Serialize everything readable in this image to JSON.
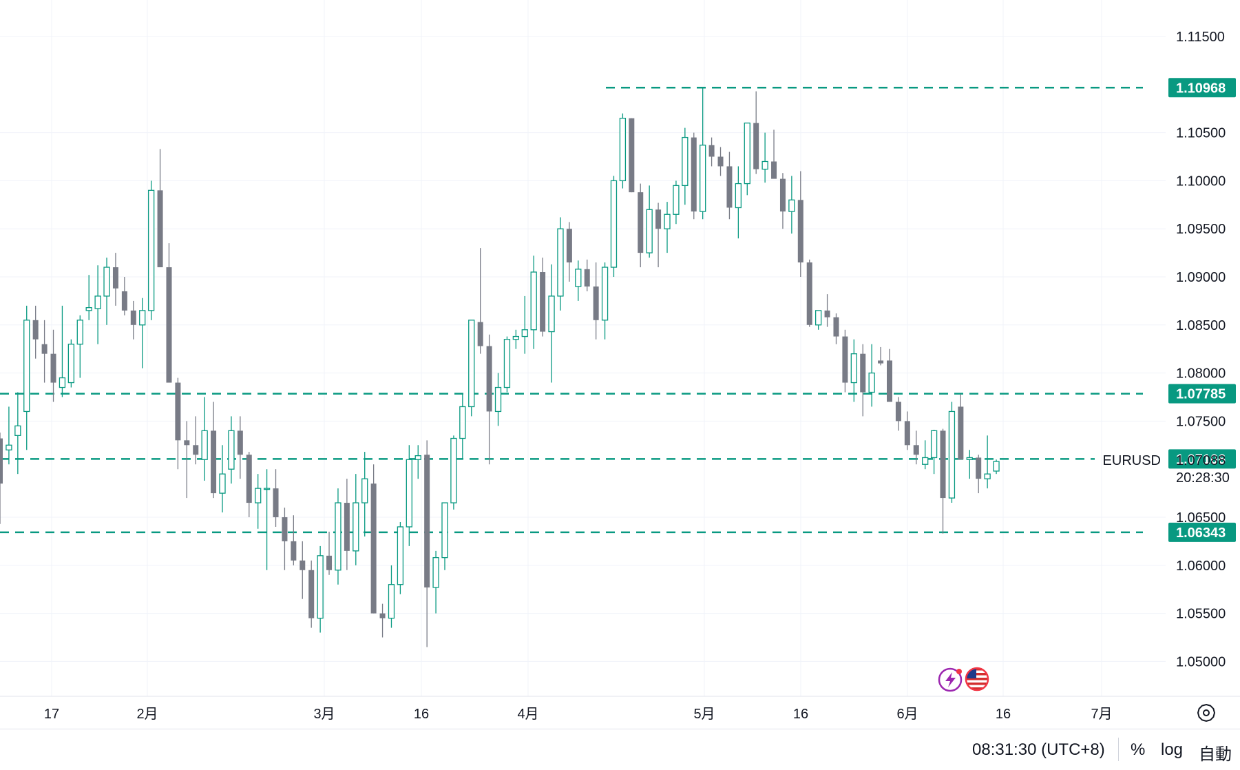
{
  "chart_data": {
    "type": "candlestick",
    "symbol": "EURUSD",
    "y_ticks": [
      "1.11500",
      "1.10500",
      "1.10000",
      "1.09500",
      "1.09000",
      "1.08500",
      "1.08000",
      "1.07500",
      "1.06500",
      "1.06000",
      "1.05500",
      "1.05000"
    ],
    "x_ticks": [
      "17",
      "2月",
      "3月",
      "16",
      "4月",
      "5月",
      "16",
      "6月",
      "16",
      "7月"
    ],
    "ylim": [
      1.0465,
      1.118
    ],
    "grid": true,
    "horizontal_lines": [
      {
        "price": 1.10968,
        "label": "1.10968",
        "color": "#089981"
      },
      {
        "price": 1.07785,
        "label": "1.07785",
        "color": "#089981"
      },
      {
        "price": 1.07106,
        "label": "1.07106",
        "color": "#089981"
      },
      {
        "price": 1.06343,
        "label": "1.06343",
        "color": "#089981"
      }
    ],
    "last_price": {
      "symbol": "EURUSD",
      "value": "1.07088",
      "countdown": "20:28:30"
    },
    "up_color": "#089981",
    "down_color": "#787b86",
    "candles": [
      [
        1.0732,
        1.0738,
        1.0643,
        1.0685
      ],
      [
        1.072,
        1.0765,
        1.0705,
        1.0725
      ],
      [
        1.0735,
        1.078,
        1.0695,
        1.0745
      ],
      [
        1.076,
        1.087,
        1.072,
        1.0855
      ],
      [
        1.0855,
        1.087,
        1.0815,
        1.0835
      ],
      [
        1.083,
        1.0855,
        1.079,
        1.082
      ],
      [
        1.082,
        1.0845,
        1.077,
        1.079
      ],
      [
        1.0785,
        1.087,
        1.0775,
        1.0795
      ],
      [
        1.079,
        1.0835,
        1.0785,
        1.083
      ],
      [
        1.083,
        1.086,
        1.0795,
        1.0855
      ],
      [
        1.0865,
        1.0902,
        1.0855,
        1.0868
      ],
      [
        1.0867,
        1.0912,
        1.083,
        1.088
      ],
      [
        1.088,
        1.092,
        1.085,
        1.091
      ],
      [
        1.091,
        1.0925,
        1.087,
        1.0888
      ],
      [
        1.0885,
        1.09,
        1.086,
        1.0865
      ],
      [
        1.0865,
        1.0875,
        1.0835,
        1.085
      ],
      [
        1.085,
        1.0878,
        1.0805,
        1.0865
      ],
      [
        1.0865,
        1.1,
        1.0855,
        1.099
      ],
      [
        1.099,
        1.1033,
        1.0912,
        1.091
      ],
      [
        1.091,
        1.0935,
        1.079,
        1.079
      ],
      [
        1.079,
        1.0795,
        1.07,
        1.073
      ],
      [
        1.073,
        1.075,
        1.067,
        1.0725
      ],
      [
        1.0725,
        1.0755,
        1.0705,
        1.0715
      ],
      [
        1.071,
        1.0775,
        1.0688,
        1.074
      ],
      [
        1.074,
        1.077,
        1.067,
        1.0675
      ],
      [
        1.0675,
        1.0725,
        1.0655,
        1.0695
      ],
      [
        1.07,
        1.0755,
        1.0685,
        1.074
      ],
      [
        1.074,
        1.0755,
        1.069,
        1.0715
      ],
      [
        1.0715,
        1.0718,
        1.065,
        1.0665
      ],
      [
        1.0665,
        1.0695,
        1.0638,
        1.068
      ],
      [
        1.068,
        1.07,
        1.0595,
        1.068
      ],
      [
        1.068,
        1.07,
        1.064,
        1.065
      ],
      [
        1.065,
        1.066,
        1.0595,
        1.0625
      ],
      [
        1.0625,
        1.0652,
        1.06,
        1.0605
      ],
      [
        1.0605,
        1.0625,
        1.0565,
        1.0595
      ],
      [
        1.0595,
        1.0605,
        1.0535,
        1.0545
      ],
      [
        1.0545,
        1.062,
        1.053,
        1.061
      ],
      [
        1.061,
        1.0635,
        1.059,
        1.0595
      ],
      [
        1.0595,
        1.068,
        1.058,
        1.0665
      ],
      [
        1.0665,
        1.069,
        1.0595,
        1.0615
      ],
      [
        1.0615,
        1.0695,
        1.06,
        1.0665
      ],
      [
        1.0665,
        1.0718,
        1.063,
        1.069
      ],
      [
        1.0685,
        1.0705,
        1.055,
        1.055
      ],
      [
        1.055,
        1.056,
        1.0525,
        1.0545
      ],
      [
        1.0545,
        1.06,
        1.0535,
        1.058
      ],
      [
        1.058,
        1.0645,
        1.057,
        1.064
      ],
      [
        1.064,
        1.0725,
        1.062,
        1.071
      ],
      [
        1.071,
        1.0725,
        1.069,
        1.0714
      ],
      [
        1.0715,
        1.073,
        1.0515,
        1.0577
      ],
      [
        1.0577,
        1.0615,
        1.055,
        1.0608
      ],
      [
        1.0608,
        1.0665,
        1.0595,
        1.0665
      ],
      [
        1.0665,
        1.0735,
        1.0658,
        1.0732
      ],
      [
        1.0732,
        1.0778,
        1.071,
        1.0765
      ],
      [
        1.0765,
        1.0855,
        1.0755,
        1.0855
      ],
      [
        1.0853,
        1.093,
        1.082,
        1.0828
      ],
      [
        1.0828,
        1.084,
        1.0705,
        1.076
      ],
      [
        1.076,
        1.08,
        1.0745,
        1.0785
      ],
      [
        1.0785,
        1.0838,
        1.078,
        1.0835
      ],
      [
        1.0835,
        1.0845,
        1.0825,
        1.0838
      ],
      [
        1.0838,
        1.088,
        1.082,
        1.0845
      ],
      [
        1.0845,
        1.0922,
        1.0825,
        1.0905
      ],
      [
        1.0905,
        1.092,
        1.0838,
        1.0843
      ],
      [
        1.0843,
        1.0913,
        1.079,
        1.088
      ],
      [
        1.088,
        1.0962,
        1.0865,
        1.095
      ],
      [
        1.095,
        1.0957,
        1.0895,
        1.0915
      ],
      [
        1.089,
        1.0917,
        1.0875,
        1.0908
      ],
      [
        1.0908,
        1.0918,
        1.0885,
        1.089
      ],
      [
        1.089,
        1.0915,
        1.0835,
        1.0855
      ],
      [
        1.0855,
        1.0915,
        1.0835,
        1.091
      ],
      [
        1.091,
        1.1005,
        1.09,
        1.1
      ],
      [
        1.1,
        1.107,
        1.0992,
        1.1065
      ],
      [
        1.1065,
        1.1065,
        1.0988,
        1.0988
      ],
      [
        1.0988,
        1.0997,
        1.091,
        1.0925
      ],
      [
        1.0925,
        1.0995,
        1.092,
        1.097
      ],
      [
        1.097,
        1.0977,
        1.091,
        1.095
      ],
      [
        1.095,
        1.0978,
        1.0925,
        1.0965
      ],
      [
        1.0965,
        1.1,
        1.0955,
        1.0995
      ],
      [
        1.0995,
        1.1055,
        1.0975,
        1.1045
      ],
      [
        1.1045,
        1.105,
        1.096,
        1.0968
      ],
      [
        1.0968,
        1.1096,
        1.096,
        1.1037
      ],
      [
        1.1037,
        1.1045,
        1.1015,
        1.1025
      ],
      [
        1.1025,
        1.1035,
        1.1005,
        1.1015
      ],
      [
        1.1015,
        1.103,
        1.096,
        1.0972
      ],
      [
        1.0972,
        1.1015,
        1.094,
        1.0997
      ],
      [
        1.0997,
        1.106,
        1.0985,
        1.106
      ],
      [
        1.106,
        1.1093,
        1.1007,
        1.1012
      ],
      [
        1.1012,
        1.105,
        1.0998,
        1.102
      ],
      [
        1.102,
        1.1053,
        1.1005,
        1.1002
      ],
      [
        1.1002,
        1.1008,
        1.095,
        1.0968
      ],
      [
        1.0968,
        1.1005,
        1.0945,
        1.098
      ],
      [
        1.098,
        1.101,
        1.09,
        1.0915
      ],
      [
        1.0915,
        1.0918,
        1.0848,
        1.085
      ],
      [
        1.085,
        1.0865,
        1.0845,
        1.0865
      ],
      [
        1.0865,
        1.0882,
        1.0848,
        1.0858
      ],
      [
        1.0858,
        1.0862,
        1.083,
        1.0838
      ],
      [
        1.0838,
        1.0845,
        1.078,
        1.079
      ],
      [
        1.079,
        1.0835,
        1.077,
        1.082
      ],
      [
        1.082,
        1.083,
        1.0755,
        1.078
      ],
      [
        1.078,
        1.083,
        1.0765,
        1.08
      ],
      [
        1.0813,
        1.0827,
        1.0808,
        1.081
      ],
      [
        1.0813,
        1.0825,
        1.0775,
        1.077
      ],
      [
        1.077,
        1.0775,
        1.074,
        1.075
      ],
      [
        1.075,
        1.076,
        1.072,
        1.0725
      ],
      [
        1.0725,
        1.074,
        1.0705,
        1.0715
      ],
      [
        1.0705,
        1.073,
        1.07,
        1.0712
      ],
      [
        1.0712,
        1.0741,
        1.0695,
        1.074
      ],
      [
        1.074,
        1.0742,
        1.0633,
        1.067
      ],
      [
        1.067,
        1.077,
        1.0665,
        1.076
      ],
      [
        1.0765,
        1.0778,
        1.071,
        1.071
      ],
      [
        1.071,
        1.072,
        1.069,
        1.0712
      ],
      [
        1.0712,
        1.0715,
        1.0675,
        1.069
      ],
      [
        1.069,
        1.0735,
        1.068,
        1.0695
      ],
      [
        1.0698,
        1.071,
        1.0695,
        1.0708
      ]
    ]
  },
  "price_axis": {
    "settings_icon": "gear-icon"
  },
  "badges": [
    {
      "icon": "lightning-icon"
    },
    {
      "icon": "us-flag-icon"
    }
  ],
  "status_bar": {
    "time": "08:31:30 (UTC+8)",
    "percent": "%",
    "log": "log",
    "auto": "自動"
  }
}
